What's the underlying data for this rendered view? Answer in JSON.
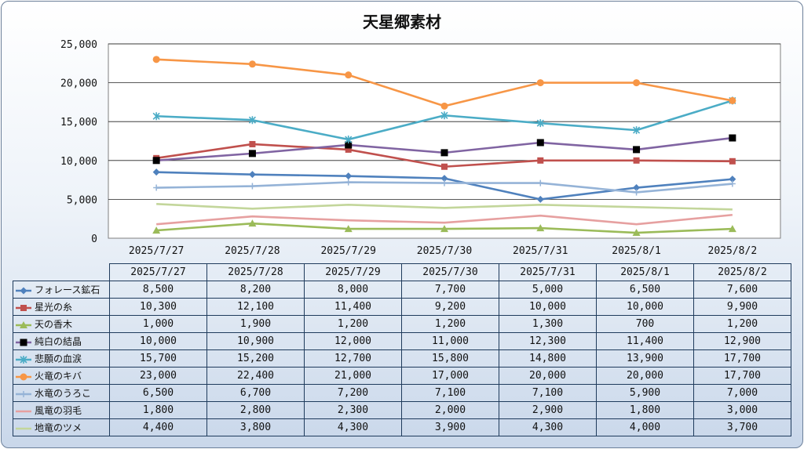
{
  "chart_data": {
    "type": "line",
    "title": "天星郷素材",
    "categories": [
      "2025/7/27",
      "2025/7/28",
      "2025/7/29",
      "2025/7/30",
      "2025/7/31",
      "2025/8/1",
      "2025/8/2"
    ],
    "ylim": [
      0,
      25000
    ],
    "yticks": [
      "0",
      "5,000",
      "10,000",
      "15,000",
      "20,000",
      "25,000"
    ],
    "grid": true,
    "legend": "data-table",
    "series": [
      {
        "name": "フォレース鉱石",
        "color": "#4f81bd",
        "marker": "diamond",
        "values": [
          8500,
          8200,
          8000,
          7700,
          5000,
          6500,
          7600
        ],
        "labels": [
          "8,500",
          "8,200",
          "8,000",
          "7,700",
          "5,000",
          "6,500",
          "7,600"
        ]
      },
      {
        "name": "星光の糸",
        "color": "#c0504d",
        "marker": "square",
        "values": [
          10300,
          12100,
          11400,
          9200,
          10000,
          10000,
          9900
        ],
        "labels": [
          "10,300",
          "12,100",
          "11,400",
          "9,200",
          "10,000",
          "10,000",
          "9,900"
        ]
      },
      {
        "name": "天の香木",
        "color": "#9bbb59",
        "marker": "triangle",
        "values": [
          1000,
          1900,
          1200,
          1200,
          1300,
          700,
          1200
        ],
        "labels": [
          "1,000",
          "1,900",
          "1,200",
          "1,200",
          "1,300",
          "700",
          "1,200"
        ]
      },
      {
        "name": "純白の結晶",
        "color": "#8064a2",
        "marker": "blacksquare",
        "values": [
          10000,
          10900,
          12000,
          11000,
          12300,
          11400,
          12900
        ],
        "labels": [
          "10,000",
          "10,900",
          "12,000",
          "11,000",
          "12,300",
          "11,400",
          "12,900"
        ]
      },
      {
        "name": "悲願の血涙",
        "color": "#4bacc6",
        "marker": "star",
        "values": [
          15700,
          15200,
          12700,
          15800,
          14800,
          13900,
          17700
        ],
        "labels": [
          "15,700",
          "15,200",
          "12,700",
          "15,800",
          "14,800",
          "13,900",
          "17,700"
        ]
      },
      {
        "name": "火竜のキバ",
        "color": "#f79646",
        "marker": "circle",
        "values": [
          23000,
          22400,
          21000,
          17000,
          20000,
          20000,
          17700
        ],
        "labels": [
          "23,000",
          "22,400",
          "21,000",
          "17,000",
          "20,000",
          "20,000",
          "17,700"
        ]
      },
      {
        "name": "水竜のうろこ",
        "color": "#95b3d7",
        "marker": "plus",
        "values": [
          6500,
          6700,
          7200,
          7100,
          7100,
          5900,
          7000
        ],
        "labels": [
          "6,500",
          "6,700",
          "7,200",
          "7,100",
          "7,100",
          "5,900",
          "7,000"
        ]
      },
      {
        "name": "風竜の羽毛",
        "color": "#e6a0a0",
        "marker": "none",
        "values": [
          1800,
          2800,
          2300,
          2000,
          2900,
          1800,
          3000
        ],
        "labels": [
          "1,800",
          "2,800",
          "2,300",
          "2,000",
          "2,900",
          "1,800",
          "3,000"
        ]
      },
      {
        "name": "地竜のツメ",
        "color": "#c3d69b",
        "marker": "none",
        "values": [
          4400,
          3800,
          4300,
          3900,
          4300,
          4000,
          3700
        ],
        "labels": [
          "4,400",
          "3,800",
          "4,300",
          "3,900",
          "4,300",
          "4,000",
          "3,700"
        ]
      }
    ]
  }
}
